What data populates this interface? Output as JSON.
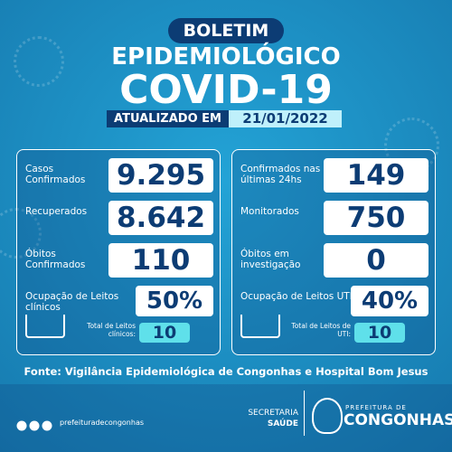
{
  "header": {
    "badge": "BOLETIM",
    "line1": "EPIDEMIOLÓGICO",
    "line2": "COVID-19",
    "updated_label": "ATUALIZADO EM",
    "date": "21/01/2022"
  },
  "panels": [
    {
      "rows": [
        {
          "label": "Casos Confirmados",
          "value": "9.295"
        },
        {
          "label": "Recuperados",
          "value": "8.642"
        },
        {
          "label": "Óbitos Confirmados",
          "value": "110"
        }
      ],
      "occupancy": {
        "label": "Ocupação de Leitos clínicos",
        "value": "50%",
        "total_label": "Total de Leitos clínicos:",
        "total_value": "10"
      }
    },
    {
      "rows": [
        {
          "label": "Confirmados nas últimas 24hs",
          "value": "149"
        },
        {
          "label": "Monitorados",
          "value": "750"
        },
        {
          "label": "Óbitos em investigação",
          "value": "0"
        }
      ],
      "occupancy": {
        "label": "Ocupação de Leitos UTI",
        "value": "40%",
        "total_label": "Total de Leitos de UTI:",
        "total_value": "10"
      }
    }
  ],
  "source": "Fonte: Vigilância Epidemiológica de Congonhas e Hospital Bom Jesus",
  "footer": {
    "social": "prefeituradecongonhas",
    "secretaria": "SECRETARIA",
    "saude": "SAÚDE",
    "prefeitura": "PREFEITURA DE",
    "city": "CONGONHAS"
  }
}
